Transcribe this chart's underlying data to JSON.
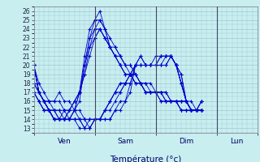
{
  "xlabel": "Température (°c)",
  "bg_color": "#c8eef0",
  "grid_color": "#a0c8d0",
  "line_color": "#0000cc",
  "marker": "+",
  "yticks": [
    13,
    14,
    15,
    16,
    17,
    18,
    19,
    20,
    21,
    22,
    23,
    24,
    25,
    26
  ],
  "ylim": [
    12.5,
    26.5
  ],
  "xlim": [
    0,
    264
  ],
  "day_positions": [
    72,
    144,
    216
  ],
  "day_labels": [
    [
      "Ven",
      36
    ],
    [
      "Sam",
      108
    ],
    [
      "Dim",
      180
    ],
    [
      "Lun",
      240
    ]
  ],
  "forecast_runs": [
    [
      20,
      18,
      17,
      16,
      16,
      17,
      16,
      16,
      15,
      15,
      14,
      14,
      14,
      14,
      14,
      14,
      15,
      15,
      16,
      17,
      20,
      21,
      20,
      20,
      20,
      20,
      20,
      21,
      20,
      19,
      16,
      16,
      15,
      15
    ],
    [
      20,
      17,
      16,
      16,
      16,
      16,
      15,
      15,
      15,
      14,
      14,
      14,
      14,
      14,
      14,
      14,
      15,
      16,
      16,
      18,
      20,
      21,
      20,
      20,
      20,
      20,
      20,
      21,
      20,
      19,
      16,
      15,
      15,
      15
    ],
    [
      20,
      17,
      16,
      15,
      15,
      15,
      15,
      14,
      14,
      14,
      14,
      13,
      14,
      14,
      15,
      15,
      16,
      17,
      18,
      18,
      20,
      20,
      20,
      20,
      20,
      20,
      21,
      21,
      20,
      18,
      16,
      15,
      15,
      15
    ],
    [
      20,
      17,
      16,
      15,
      15,
      14,
      14,
      14,
      14,
      14,
      13,
      13,
      14,
      14,
      15,
      16,
      17,
      18,
      18,
      19,
      20,
      20,
      20,
      20,
      20,
      21,
      21,
      21,
      20,
      18,
      16,
      15,
      15,
      15
    ],
    [
      20,
      17,
      16,
      15,
      15,
      14,
      14,
      14,
      14,
      13,
      13,
      13,
      14,
      14,
      15,
      16,
      17,
      17,
      18,
      19,
      20,
      20,
      20,
      20,
      21,
      21,
      21,
      21,
      20,
      18,
      16,
      15,
      15,
      15
    ],
    [
      20,
      17,
      16,
      16,
      15,
      15,
      14,
      14,
      14,
      14,
      13,
      14,
      14,
      14,
      15,
      16,
      17,
      18,
      18,
      19,
      20,
      20,
      20,
      20,
      20,
      21,
      21,
      21,
      20,
      18,
      16,
      15,
      15,
      15
    ],
    [
      18,
      17,
      16,
      15,
      14,
      14,
      14,
      14,
      15,
      17,
      21,
      24,
      25,
      26,
      24,
      23,
      22,
      21,
      20,
      20,
      19,
      18,
      18,
      18,
      17,
      17,
      17,
      16,
      16,
      15,
      15,
      15,
      15,
      15
    ],
    [
      18,
      17,
      16,
      15,
      14,
      14,
      14,
      14,
      15,
      16,
      20,
      23,
      25,
      25,
      24,
      22,
      22,
      21,
      20,
      20,
      19,
      18,
      18,
      17,
      17,
      17,
      17,
      16,
      16,
      15,
      15,
      15,
      15,
      15
    ],
    [
      18,
      17,
      16,
      15,
      14,
      14,
      14,
      14,
      15,
      17,
      20,
      23,
      24,
      25,
      24,
      22,
      21,
      21,
      20,
      19,
      19,
      18,
      17,
      17,
      17,
      17,
      16,
      16,
      16,
      15,
      15,
      15,
      15,
      15
    ],
    [
      17,
      16,
      15,
      15,
      14,
      14,
      14,
      15,
      16,
      17,
      20,
      22,
      24,
      24,
      23,
      22,
      21,
      20,
      19,
      19,
      18,
      18,
      17,
      17,
      17,
      17,
      16,
      16,
      16,
      16,
      16,
      15,
      15,
      16
    ],
    [
      17,
      16,
      15,
      15,
      14,
      14,
      14,
      15,
      16,
      17,
      19,
      22,
      23,
      24,
      23,
      22,
      21,
      20,
      19,
      19,
      18,
      18,
      17,
      17,
      17,
      16,
      16,
      16,
      16,
      16,
      16,
      15,
      15,
      16
    ],
    [
      17,
      16,
      15,
      15,
      14,
      14,
      15,
      15,
      16,
      17,
      19,
      21,
      23,
      24,
      23,
      22,
      21,
      20,
      19,
      19,
      18,
      18,
      17,
      17,
      17,
      16,
      16,
      16,
      16,
      16,
      16,
      15,
      15,
      16
    ]
  ],
  "time_points": [
    0,
    6,
    12,
    18,
    24,
    30,
    36,
    42,
    48,
    54,
    60,
    66,
    72,
    78,
    84,
    90,
    96,
    102,
    108,
    114,
    120,
    126,
    132,
    138,
    144,
    150,
    156,
    162,
    168,
    174,
    180,
    186,
    192,
    198,
    204,
    210,
    216,
    222,
    228,
    234,
    240,
    246,
    252,
    258,
    264
  ]
}
